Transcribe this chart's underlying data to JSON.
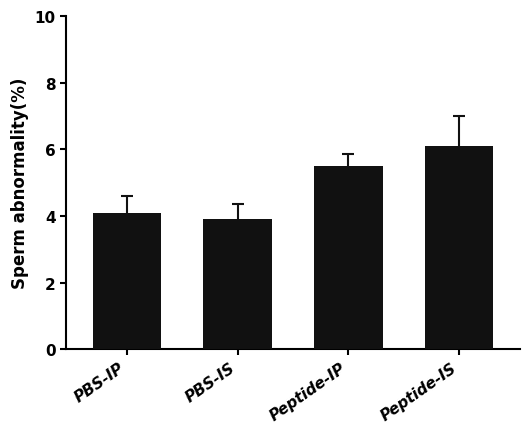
{
  "categories": [
    "PBS-IP",
    "PBS-IS",
    "Peptide-IP",
    "Peptide-IS"
  ],
  "values": [
    4.1,
    3.9,
    5.5,
    6.1
  ],
  "errors": [
    0.5,
    0.45,
    0.35,
    0.9
  ],
  "bar_color": "#111111",
  "error_color": "#111111",
  "ylabel": "Sperm abnormality(%)",
  "ylim": [
    0,
    10
  ],
  "yticks": [
    0,
    2,
    4,
    6,
    8,
    10
  ],
  "bar_width": 0.62,
  "capsize": 4,
  "background_color": "#ffffff",
  "ylabel_fontsize": 12,
  "tick_fontsize": 11,
  "xlabel_rotation": 35,
  "bar_spacing": 1.0
}
